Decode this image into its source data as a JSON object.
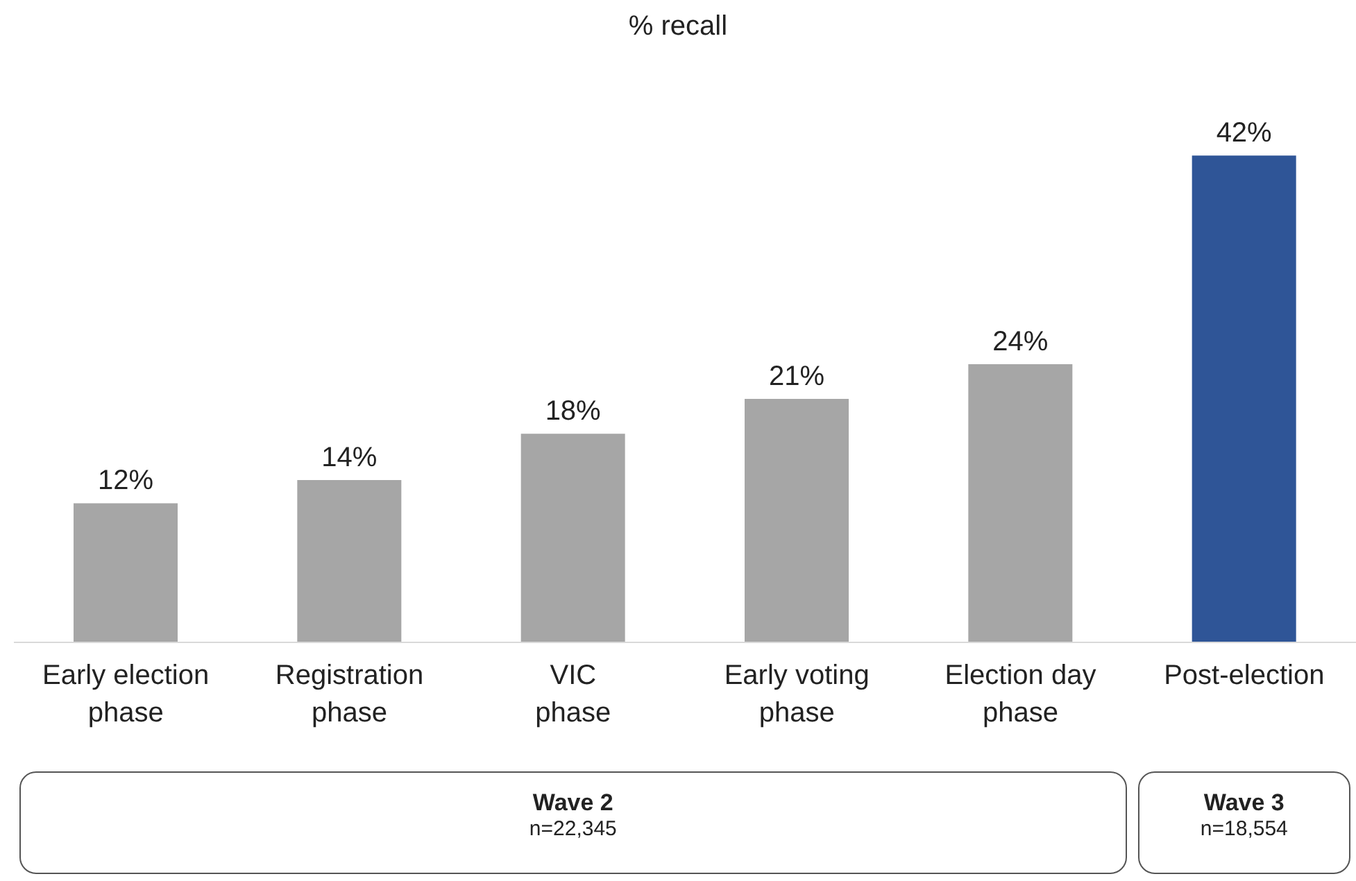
{
  "chart_data": {
    "type": "bar",
    "title": "% recall",
    "categories": [
      "Early election phase",
      "Registration phase",
      "VIC phase",
      "Early voting phase",
      "Election day phase",
      "Post-election"
    ],
    "values": [
      12,
      14,
      18,
      21,
      24,
      42
    ],
    "colors": [
      "#a6a6a6",
      "#a6a6a6",
      "#a6a6a6",
      "#a6a6a6",
      "#a6a6a6",
      "#2f5597"
    ],
    "value_labels": [
      "12%",
      "14%",
      "18%",
      "21%",
      "24%",
      "42%"
    ],
    "annotations": [
      "Wave 2",
      "n=22,345",
      "Wave 3",
      "n=18,554"
    ]
  }
}
